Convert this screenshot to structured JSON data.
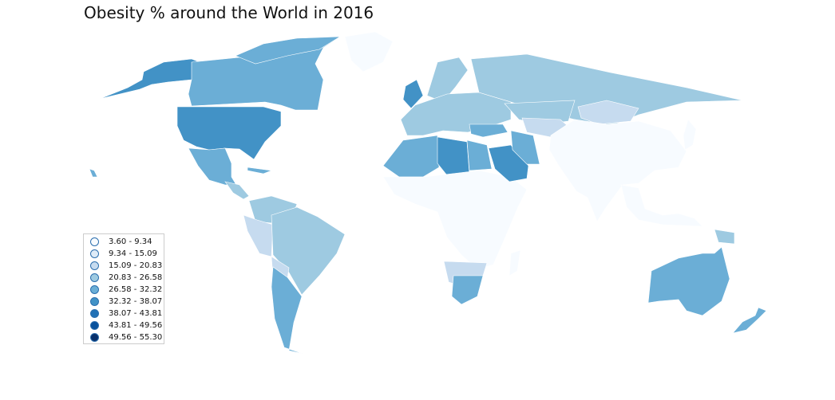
{
  "title": "Obesity % around the World in 2016",
  "colors": {
    "c0": "#f7fbff",
    "c1": "#deebf7",
    "c2": "#c6dbef",
    "c3": "#9ecae1",
    "c4": "#6baed6",
    "c5": "#4292c6",
    "c6": "#2171b5",
    "c7": "#08519c",
    "c8": "#08306b"
  },
  "legend": {
    "items": [
      {
        "label": "3.60 - 9.34",
        "color": "#f7fbff"
      },
      {
        "label": "9.34 - 15.09",
        "color": "#deebf7"
      },
      {
        "label": "15.09 - 20.83",
        "color": "#c6dbef"
      },
      {
        "label": "20.83 - 26.58",
        "color": "#9ecae1"
      },
      {
        "label": "26.58 - 32.32",
        "color": "#6baed6"
      },
      {
        "label": "32.32 - 38.07",
        "color": "#4292c6"
      },
      {
        "label": "38.07 - 43.81",
        "color": "#2171b5"
      },
      {
        "label": "43.81 - 49.56",
        "color": "#08519c"
      },
      {
        "label": "49.56 - 55.30",
        "color": "#08306b"
      }
    ]
  }
}
